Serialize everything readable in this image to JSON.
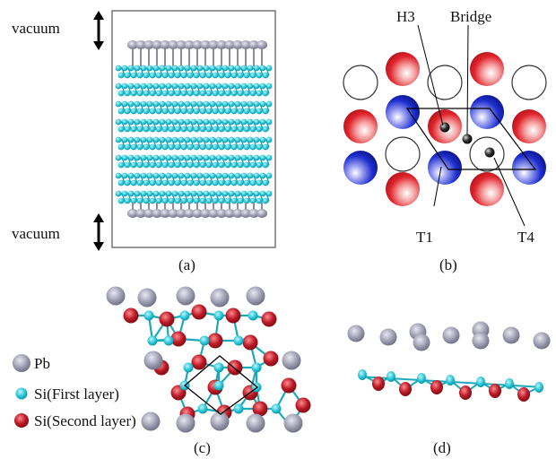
{
  "panel_a": {
    "vacuum_top": "vacuum",
    "vacuum_bottom": "vacuum",
    "caption": "(a)"
  },
  "panel_b": {
    "labels": {
      "h3": "H3",
      "bridge": "Bridge",
      "t1": "T1",
      "t4": "T4"
    },
    "caption": "(b)"
  },
  "panel_c": {
    "legend": [
      {
        "key": "pb",
        "label": "Pb",
        "color": "#9a9aae"
      },
      {
        "key": "si1",
        "label": "Si(First layer)",
        "color": "#22c4d6"
      },
      {
        "key": "si2",
        "label": "Si(Second layer)",
        "color": "#bb1a26"
      }
    ],
    "caption": "(c)"
  },
  "panel_d": {
    "caption": "(d)"
  },
  "colors": {
    "pb": "#9a9aae",
    "si_cyan": "#22c4d6",
    "si_red": "#bb1a26",
    "site_red": "#e0242c",
    "site_blue": "#1f2fd0"
  }
}
